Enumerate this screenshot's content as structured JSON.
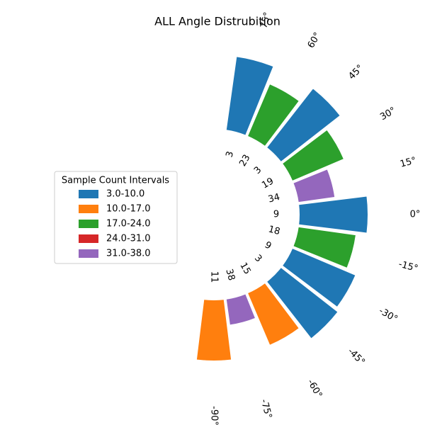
{
  "chart_data": {
    "type": "polar_bar",
    "title": "ALL Angle Distrubition",
    "angles": [
      {
        "value": 75,
        "label": "75°"
      },
      {
        "value": 60,
        "label": "60°"
      },
      {
        "value": 45,
        "label": "45°"
      },
      {
        "value": 30,
        "label": "30°"
      },
      {
        "value": 15,
        "label": "15°"
      },
      {
        "value": 0,
        "label": "0°"
      },
      {
        "value": -15,
        "label": "-15°"
      },
      {
        "value": -30,
        "label": "-30°"
      },
      {
        "value": -45,
        "label": "-45°"
      },
      {
        "value": -60,
        "label": "-60°"
      },
      {
        "value": -75,
        "label": "-75°"
      },
      {
        "value": -90,
        "label": "-90°"
      }
    ],
    "values": [
      106,
      81,
      107,
      80,
      53,
      98,
      83,
      98,
      103,
      81,
      38,
      87
    ],
    "counts": [
      3,
      23,
      3,
      19,
      34,
      9,
      18,
      9,
      3,
      15,
      38,
      11
    ],
    "colors": [
      "#1f77b4",
      "#2ca02c",
      "#1f77b4",
      "#2ca02c",
      "#9467bd",
      "#1f77b4",
      "#2ca02c",
      "#1f77b4",
      "#1f77b4",
      "#ff7f0e",
      "#9467bd",
      "#ff7f0e"
    ],
    "legend": {
      "title": "Sample Count Intervals",
      "position": "center left",
      "entries": [
        {
          "name": "3.0-10.0",
          "color": "#1f77b4"
        },
        {
          "name": "10.0-17.0",
          "color": "#ff7f0e"
        },
        {
          "name": "17.0-24.0",
          "color": "#2ca02c"
        },
        {
          "name": "24.0-31.0",
          "color": "#d62728"
        },
        {
          "name": "31.0-38.0",
          "color": "#9467bd"
        }
      ]
    }
  }
}
